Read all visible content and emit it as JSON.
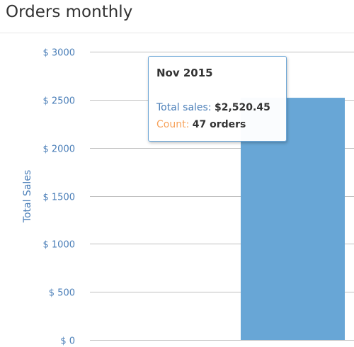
{
  "panel": {
    "title": "Orders monthly"
  },
  "chart_data": {
    "type": "bar",
    "title": "",
    "xlabel": "",
    "ylabel": "Total Sales",
    "ylim": [
      0,
      3000
    ],
    "yticks": [
      0,
      500,
      1000,
      1500,
      2000,
      2500,
      3000
    ],
    "ytick_labels": [
      "$ 0",
      "$ 500",
      "$ 1000",
      "$ 1500",
      "$ 2000",
      "$ 2500",
      "$ 3000"
    ],
    "categories": [
      "Nov 2015"
    ],
    "series": [
      {
        "values": [
          2520.45
        ],
        "color": "#68a6d6"
      }
    ],
    "grid": true,
    "gridline_color": "#c0c0c0"
  },
  "tooltip": {
    "header": "Nov 2015",
    "rows": [
      {
        "label": "Total sales:",
        "value": "$2,520.45",
        "label_color": "#4a7eb8"
      },
      {
        "label": "Count:",
        "value": "47 orders",
        "label_color": "#f7a35c"
      }
    ]
  }
}
